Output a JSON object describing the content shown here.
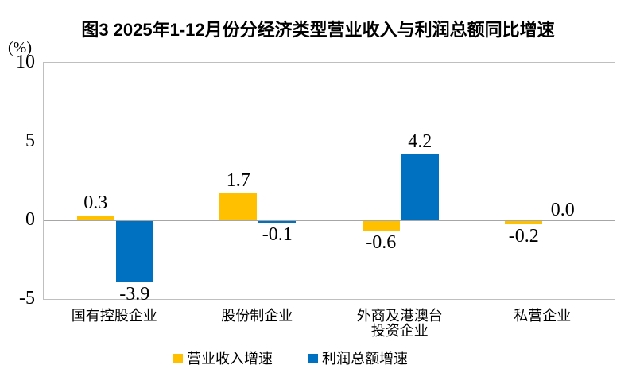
{
  "chart_data": {
    "type": "bar",
    "title": "图3 2025年1-12月份分经济类型营业收入与利润总额同比增速",
    "unit": "(%)",
    "categories": [
      [
        "国有控股企业"
      ],
      [
        "股份制企业"
      ],
      [
        "外商及港澳台",
        "投资企业"
      ],
      [
        "私营企业"
      ]
    ],
    "series": [
      {
        "name": "营业收入增速",
        "color": "#FFC000",
        "values": [
          0.3,
          1.7,
          -0.6,
          -0.2
        ],
        "labels": [
          "0.3",
          "1.7",
          "-0.6",
          "-0.2"
        ]
      },
      {
        "name": "利润总额增速",
        "color": "#0070C0",
        "values": [
          -3.9,
          -0.1,
          4.2,
          0.0
        ],
        "labels": [
          "-3.9",
          "-0.1",
          "4.2",
          "0.0"
        ]
      }
    ],
    "ylim": [
      -5,
      10
    ],
    "ytick_values": [
      10,
      5,
      0,
      -5
    ],
    "ytick_labels": [
      "10",
      "5",
      "0",
      "-5"
    ],
    "grid": "zero-line-only",
    "legend_position": "bottom",
    "axis_border_color": "#bfbfbf",
    "zero_line_color": "#a6a6a6"
  },
  "legend": {
    "items": [
      {
        "label": "营业收入增速",
        "color": "#FFC000"
      },
      {
        "label": "利润总额增速",
        "color": "#0070C0"
      }
    ]
  }
}
